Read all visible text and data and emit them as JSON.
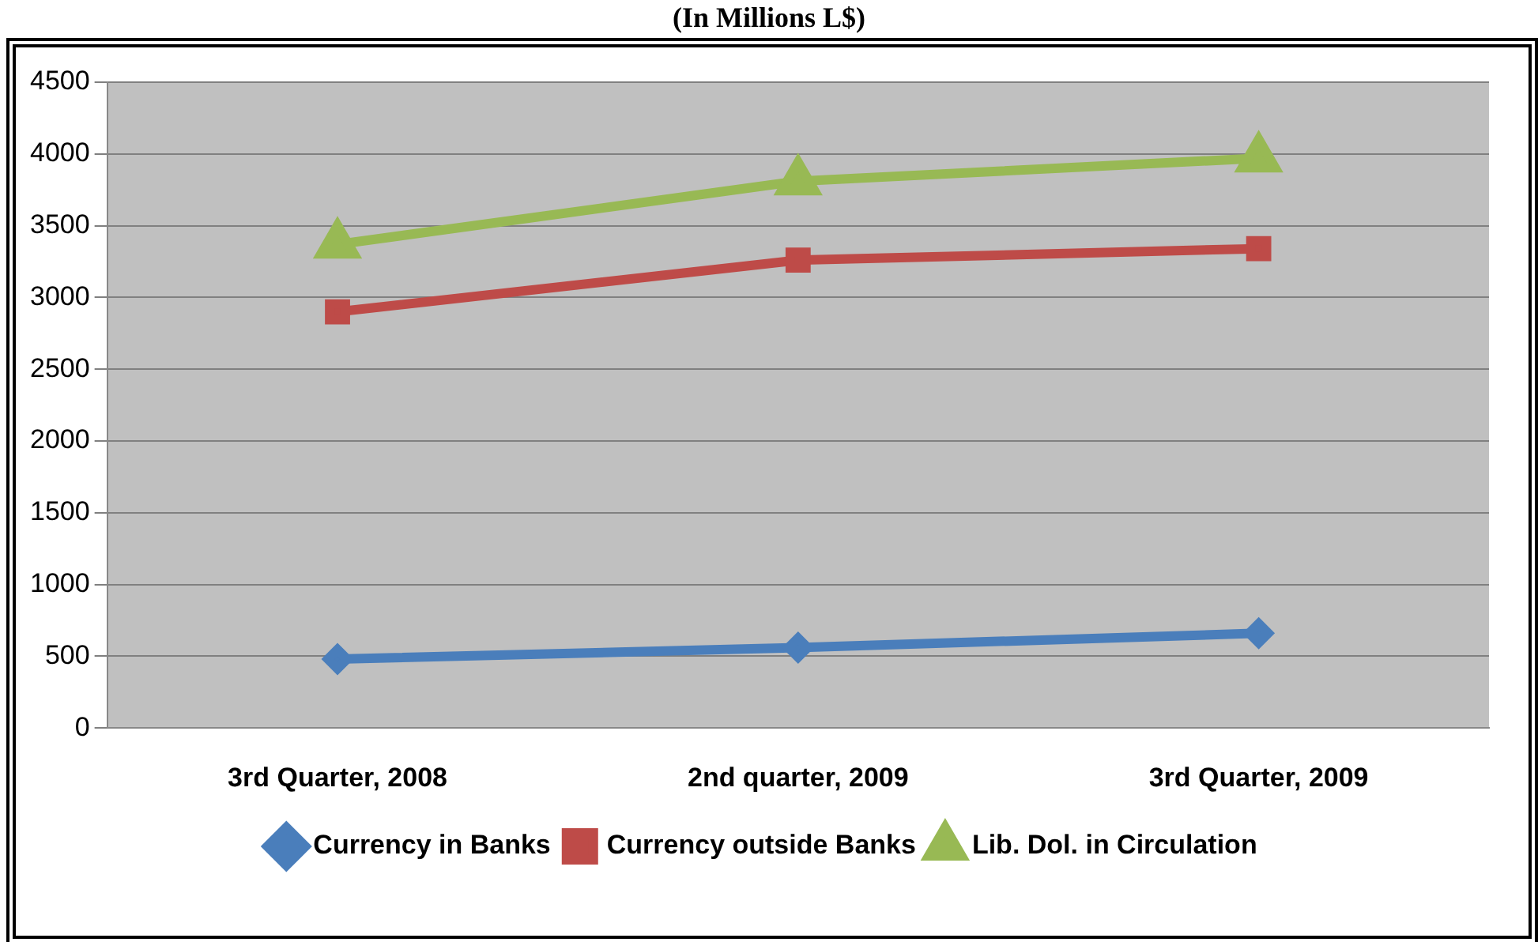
{
  "chart_data": {
    "type": "line",
    "title": "(In Millions L$)",
    "categories": [
      "3rd Quarter, 2008",
      "2nd quarter, 2009",
      "3rd Quarter, 2009"
    ],
    "series": [
      {
        "name": "Currency in Banks",
        "color": "#4a7ebb",
        "values": [
          480,
          560,
          660
        ],
        "marker": "diamond"
      },
      {
        "name": "Currency outside Banks",
        "color": "#be4b48",
        "values": [
          2900,
          3260,
          3340
        ],
        "marker": "square"
      },
      {
        "name": "Lib. Dol. in Circulation",
        "color": "#98b954",
        "values": [
          3370,
          3810,
          3970
        ],
        "marker": "triangle"
      }
    ],
    "ylim": [
      0,
      4500
    ],
    "yticks": [
      0,
      500,
      1000,
      1500,
      2000,
      2500,
      3000,
      3500,
      4000,
      4500
    ],
    "grid": "y",
    "legend": "bottom"
  }
}
